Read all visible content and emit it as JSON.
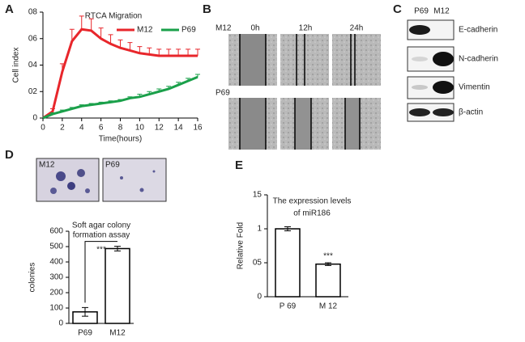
{
  "panel_labels": [
    "A",
    "B",
    "C",
    "D",
    "E"
  ],
  "wound_healing": {
    "rows": [
      "M12",
      "P69"
    ],
    "columns": [
      "0h",
      "12h",
      "24h"
    ]
  },
  "western_blot": {
    "lanes": [
      "P69",
      "M12"
    ],
    "proteins": [
      "E-cadherin",
      "N-cadherin",
      "Vimentin",
      "β-actin"
    ]
  },
  "colony_images": [
    "M12",
    "P69"
  ],
  "chart_data": [
    {
      "type": "line",
      "title": "RTCA Migration",
      "x_label": "Time(hours)",
      "y_label": "Cell index",
      "x": [
        0,
        1,
        2,
        3,
        4,
        5,
        6,
        7,
        8,
        9,
        10,
        11,
        12,
        13,
        14,
        15,
        16
      ],
      "series": [
        {
          "name": "M12",
          "color": "#e8262b",
          "values": [
            0,
            0.05,
            0.35,
            0.58,
            0.67,
            0.66,
            0.6,
            0.56,
            0.53,
            0.51,
            0.49,
            0.48,
            0.47,
            0.47,
            0.47,
            0.47,
            0.47
          ],
          "errors": [
            0,
            0.02,
            0.06,
            0.09,
            0.1,
            0.09,
            0.08,
            0.07,
            0.06,
            0.06,
            0.05,
            0.05,
            0.05,
            0.05,
            0.05,
            0.05,
            0.05
          ]
        },
        {
          "name": "P69",
          "color": "#1aa04a",
          "values": [
            0,
            0.03,
            0.05,
            0.07,
            0.09,
            0.1,
            0.11,
            0.12,
            0.13,
            0.15,
            0.16,
            0.18,
            0.2,
            0.22,
            0.25,
            0.28,
            0.31
          ],
          "errors": [
            0,
            0.01,
            0.01,
            0.01,
            0.01,
            0.01,
            0.01,
            0.01,
            0.01,
            0.01,
            0.02,
            0.02,
            0.02,
            0.02,
            0.02,
            0.02,
            0.02
          ]
        }
      ],
      "xlim": [
        0,
        16
      ],
      "xticks": [
        0,
        2,
        4,
        6,
        8,
        10,
        12,
        14,
        16
      ],
      "ylim": [
        0,
        0.8
      ],
      "yticks": [
        0,
        {
          "value": 0.2,
          "label": "02"
        },
        {
          "value": 0.4,
          "label": "04"
        },
        {
          "value": 0.6,
          "label": "06"
        },
        {
          "value": 0.8,
          "label": "08"
        }
      ],
      "legend": "top-right"
    },
    {
      "type": "bar",
      "title": [
        "Soft agar colony",
        "formation assay"
      ],
      "y_label": "colonies",
      "categories": [
        "P69",
        "M12"
      ],
      "values": [
        75,
        487
      ],
      "errors": [
        28,
        15
      ],
      "ylim": [
        0,
        600
      ],
      "yticks": [
        0,
        100,
        200,
        300,
        400,
        500,
        600
      ],
      "annotation": "***"
    },
    {
      "type": "bar",
      "title": [
        "The expression levels",
        "of miR186"
      ],
      "y_label": "Relative Fold",
      "categories": [
        "P 69",
        "M 12"
      ],
      "values": [
        1.0,
        0.48
      ],
      "errors": [
        0.03,
        0.02
      ],
      "ylim": [
        0,
        1.5
      ],
      "yticks": [
        0,
        {
          "value": 0.5,
          "label": "05"
        },
        1,
        {
          "value": 1.5,
          "label": "15"
        }
      ],
      "annotation": "***"
    }
  ]
}
